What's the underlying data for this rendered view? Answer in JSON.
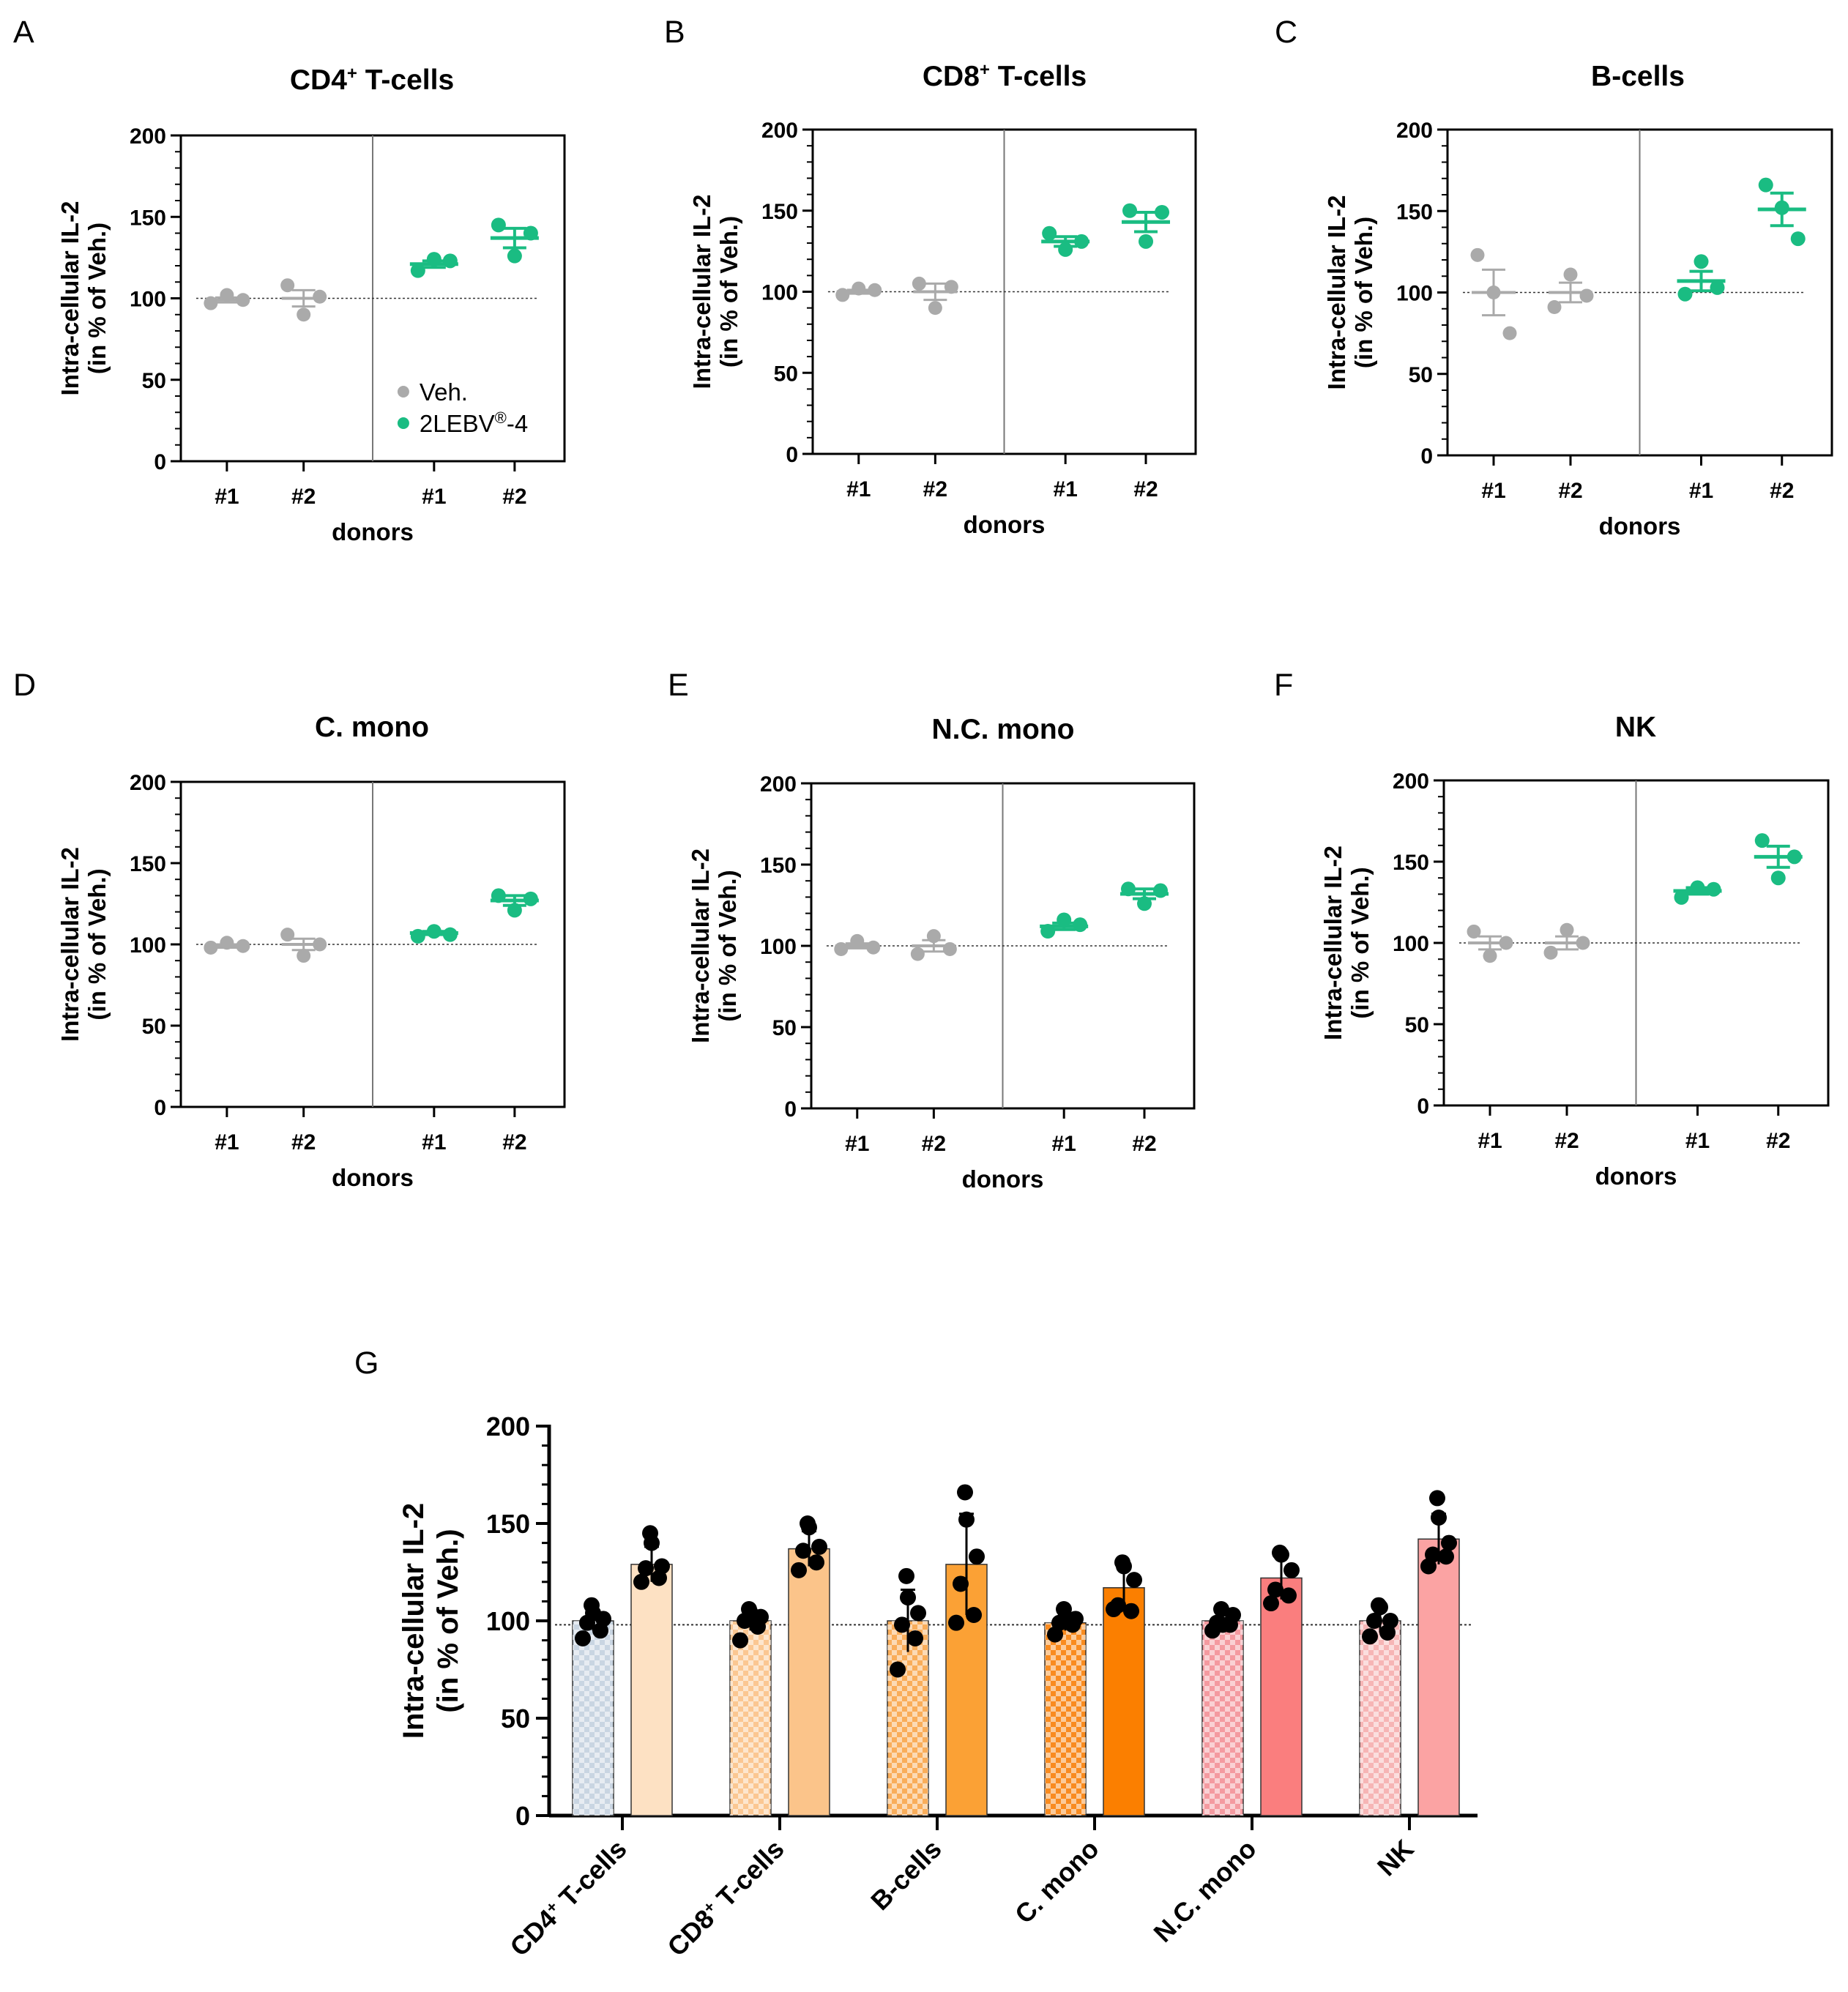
{
  "figure": {
    "panel_letters": [
      "A",
      "B",
      "C",
      "D",
      "E",
      "F",
      "G"
    ],
    "legend": {
      "vehicle": "Veh.",
      "treatment": "2LEBV",
      "treatment_mark": "®",
      "treatment_suffix": "-4"
    }
  },
  "colors": {
    "vehicle": "#aaaaaa",
    "treatment": "#1abc82",
    "dots_g": "#000000",
    "bars": {
      "CD4": [
        "#c9d5e2",
        "#fde1c3"
      ],
      "CD8": [
        "#fbc792",
        "#fbc48a"
      ],
      "B": [
        "#f9ad5a",
        "#fba135"
      ],
      "CM": [
        "#f98b1f",
        "#fb7f00"
      ],
      "NCM": [
        "#f49aa0",
        "#fa7e7e"
      ],
      "NK": [
        "#f6b5b5",
        "#fba3a3"
      ]
    }
  },
  "chart_data": [
    {
      "type": "scatter",
      "panel": "A",
      "title": "CD4",
      "title_sup": "+",
      "title_rest": " T-cells",
      "xlabel": "donors",
      "ylabel": "Intra-cellular IL-2",
      "ylabel2": "(in % of Veh.)",
      "ylim": [
        0,
        200
      ],
      "yticks": [
        "0",
        "50",
        "100",
        "150",
        "200"
      ],
      "reference_line": 100,
      "legend": true,
      "groups": [
        {
          "label": "#1",
          "condition": "vehicle",
          "points": [
            97,
            102,
            99
          ],
          "mean": 99,
          "sem": 1.5
        },
        {
          "label": "#2",
          "condition": "vehicle",
          "points": [
            108,
            90,
            101
          ],
          "mean": 100,
          "sem": 5
        },
        {
          "label": "#1",
          "condition": "treatment",
          "points": [
            117,
            124,
            123
          ],
          "mean": 121,
          "sem": 2
        },
        {
          "label": "#2",
          "condition": "treatment",
          "points": [
            145,
            126,
            140
          ],
          "mean": 137,
          "sem": 6
        }
      ]
    },
    {
      "type": "scatter",
      "panel": "B",
      "title": "CD8",
      "title_sup": "+",
      "title_rest": " T-cells",
      "xlabel": "donors",
      "ylabel": "Intra-cellular IL-2",
      "ylabel2": "(in % of Veh.)",
      "ylim": [
        0,
        200
      ],
      "yticks": [
        "0",
        "50",
        "100",
        "150",
        "200"
      ],
      "reference_line": 100,
      "legend": false,
      "groups": [
        {
          "label": "#1",
          "condition": "vehicle",
          "points": [
            98,
            102,
            101
          ],
          "mean": 100,
          "sem": 1.2
        },
        {
          "label": "#2",
          "condition": "vehicle",
          "points": [
            105,
            90,
            103
          ],
          "mean": 100,
          "sem": 5
        },
        {
          "label": "#1",
          "condition": "treatment",
          "points": [
            136,
            126,
            131
          ],
          "mean": 131,
          "sem": 3
        },
        {
          "label": "#2",
          "condition": "treatment",
          "points": [
            150,
            131,
            149
          ],
          "mean": 143,
          "sem": 6
        }
      ]
    },
    {
      "type": "scatter",
      "panel": "C",
      "title": "B-cells",
      "title_sup": "",
      "title_rest": "",
      "xlabel": "donors",
      "ylabel": "Intra-cellular IL-2",
      "ylabel2": "(in % of Veh.)",
      "ylim": [
        0,
        200
      ],
      "yticks": [
        "0",
        "50",
        "100",
        "150",
        "200"
      ],
      "reference_line": 100,
      "legend": false,
      "groups": [
        {
          "label": "#1",
          "condition": "vehicle",
          "points": [
            123,
            100,
            75
          ],
          "mean": 100,
          "sem": 14
        },
        {
          "label": "#2",
          "condition": "vehicle",
          "points": [
            91,
            111,
            98
          ],
          "mean": 100,
          "sem": 6
        },
        {
          "label": "#1",
          "condition": "treatment",
          "points": [
            99,
            119,
            103
          ],
          "mean": 107,
          "sem": 6
        },
        {
          "label": "#2",
          "condition": "treatment",
          "points": [
            166,
            152,
            133
          ],
          "mean": 151,
          "sem": 10
        }
      ]
    },
    {
      "type": "scatter",
      "panel": "D",
      "title": "C. mono",
      "title_sup": "",
      "title_rest": "",
      "xlabel": "donors",
      "ylabel": "Intra-cellular IL-2",
      "ylabel2": "(in % of Veh.)",
      "ylim": [
        0,
        200
      ],
      "yticks": [
        "0",
        "50",
        "100",
        "150",
        "200"
      ],
      "reference_line": 100,
      "legend": false,
      "groups": [
        {
          "label": "#1",
          "condition": "vehicle",
          "points": [
            98,
            101,
            99
          ],
          "mean": 99,
          "sem": 1
        },
        {
          "label": "#2",
          "condition": "vehicle",
          "points": [
            106,
            93,
            100
          ],
          "mean": 100,
          "sem": 3.5
        },
        {
          "label": "#1",
          "condition": "treatment",
          "points": [
            105,
            108,
            106
          ],
          "mean": 107,
          "sem": 1
        },
        {
          "label": "#2",
          "condition": "treatment",
          "points": [
            130,
            121,
            128
          ],
          "mean": 127,
          "sem": 3
        }
      ]
    },
    {
      "type": "scatter",
      "panel": "E",
      "title": "N.C. mono",
      "title_sup": "",
      "title_rest": "",
      "xlabel": "donors",
      "ylabel": "Intra-cellular IL-2",
      "ylabel2": "(in % of Veh.)",
      "ylim": [
        0,
        200
      ],
      "yticks": [
        "0",
        "50",
        "100",
        "150",
        "200"
      ],
      "reference_line": 100,
      "legend": false,
      "groups": [
        {
          "label": "#1",
          "condition": "vehicle",
          "points": [
            98,
            103,
            99
          ],
          "mean": 100,
          "sem": 1.5
        },
        {
          "label": "#2",
          "condition": "vehicle",
          "points": [
            95,
            106,
            98
          ],
          "mean": 100,
          "sem": 3.5
        },
        {
          "label": "#1",
          "condition": "treatment",
          "points": [
            109,
            116,
            113
          ],
          "mean": 112,
          "sem": 2
        },
        {
          "label": "#2",
          "condition": "treatment",
          "points": [
            135,
            126,
            134
          ],
          "mean": 132,
          "sem": 3
        }
      ]
    },
    {
      "type": "scatter",
      "panel": "F",
      "title": "NK",
      "title_sup": "",
      "title_rest": "",
      "xlabel": "donors",
      "ylabel": "Intra-cellular IL-2",
      "ylabel2": "(in % of Veh.)",
      "ylim": [
        0,
        200
      ],
      "yticks": [
        "0",
        "50",
        "100",
        "150",
        "200"
      ],
      "reference_line": 100,
      "legend": false,
      "groups": [
        {
          "label": "#1",
          "condition": "vehicle",
          "points": [
            107,
            92,
            100
          ],
          "mean": 100,
          "sem": 4
        },
        {
          "label": "#2",
          "condition": "vehicle",
          "points": [
            94,
            108,
            100
          ],
          "mean": 100,
          "sem": 4
        },
        {
          "label": "#1",
          "condition": "treatment",
          "points": [
            128,
            134,
            133
          ],
          "mean": 132,
          "sem": 2
        },
        {
          "label": "#2",
          "condition": "treatment",
          "points": [
            163,
            140,
            153
          ],
          "mean": 153,
          "sem": 6.5
        }
      ]
    },
    {
      "type": "bar",
      "panel": "G",
      "ylabel": "Intra-cellular IL-2",
      "ylabel2": "(in % of Veh.)",
      "ylim": [
        0,
        200
      ],
      "yticks": [
        "0",
        "50",
        "100",
        "150",
        "200"
      ],
      "reference_line": 98,
      "categories": [
        {
          "key": "CD4",
          "label": "CD4",
          "sup": "+",
          "rest": " T-cells",
          "veh": {
            "value": 100,
            "sd": 5,
            "points": [
              91,
              95,
              99,
              101,
              104,
              108
            ]
          },
          "trt": {
            "value": 129,
            "sd": 9,
            "points": [
              120,
              122,
              127,
              128,
              140,
              145
            ]
          }
        },
        {
          "key": "CD8",
          "label": "CD8",
          "sup": "+",
          "rest": " T-cells",
          "veh": {
            "value": 100,
            "sd": 5,
            "points": [
              90,
              97,
              100,
              102,
              104,
              106
            ]
          },
          "trt": {
            "value": 137,
            "sd": 9,
            "points": [
              126,
              130,
              136,
              138,
              148,
              150
            ]
          }
        },
        {
          "key": "B",
          "label": "B-cells",
          "sup": "",
          "rest": "",
          "veh": {
            "value": 100,
            "sd": 16,
            "points": [
              75,
              91,
              98,
              104,
              112,
              123
            ]
          },
          "trt": {
            "value": 129,
            "sd": 26,
            "points": [
              99,
              103,
              119,
              133,
              152,
              166
            ]
          }
        },
        {
          "key": "CM",
          "label": "C. mono",
          "sup": "",
          "rest": "",
          "veh": {
            "value": 99,
            "sd": 4,
            "points": [
              93,
              98,
              99,
              101,
              100,
              106
            ]
          },
          "trt": {
            "value": 117,
            "sd": 11,
            "points": [
              106,
              105,
              108,
              121,
              128,
              130
            ]
          }
        },
        {
          "key": "NCM",
          "label": "N.C. mono",
          "sup": "",
          "rest": "",
          "veh": {
            "value": 100,
            "sd": 4,
            "points": [
              95,
              98,
              99,
              103,
              98,
              106
            ]
          },
          "trt": {
            "value": 122,
            "sd": 11,
            "points": [
              109,
              113,
              116,
              126,
              134,
              135
            ]
          }
        },
        {
          "key": "NK",
          "label": "NK",
          "sup": "",
          "rest": "",
          "veh": {
            "value": 100,
            "sd": 6,
            "points": [
              92,
              94,
              100,
              100,
              107,
              108
            ]
          },
          "trt": {
            "value": 142,
            "sd": 13,
            "points": [
              128,
              133,
              134,
              140,
              153,
              163
            ]
          }
        }
      ]
    }
  ]
}
